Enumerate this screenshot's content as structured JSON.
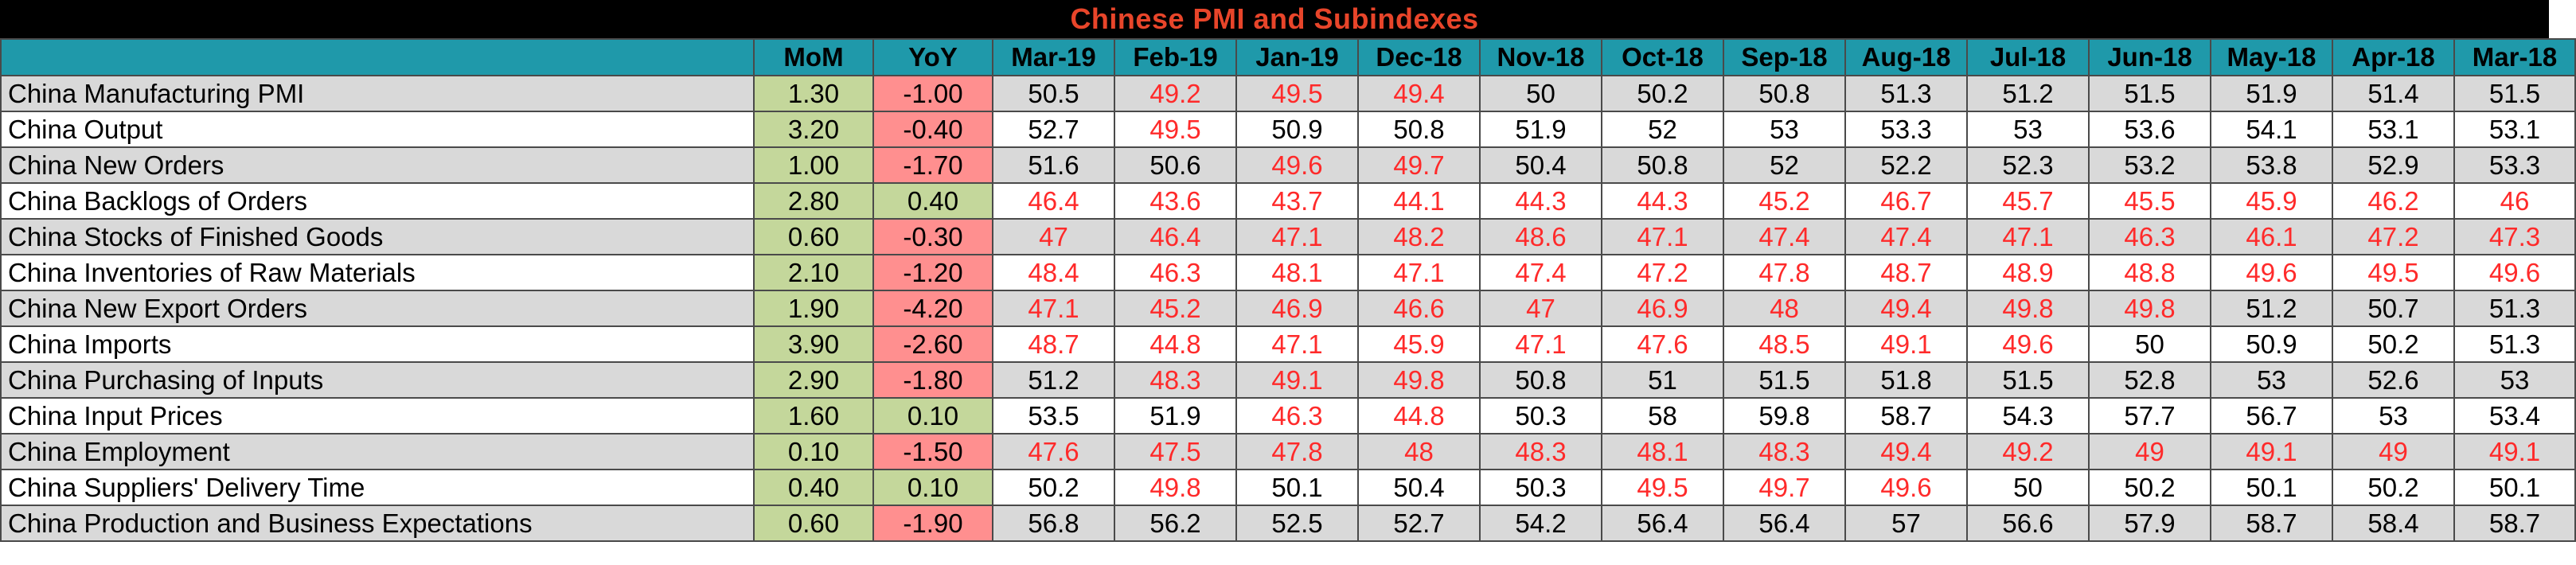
{
  "title": "Chinese PMI and Subindexes",
  "colors": {
    "title_text": "#e8452a",
    "header_bg": "#1f99aa",
    "positive_change_bg": "#c4d79b",
    "negative_change_bg": "#ff8f8f",
    "below_50_text": "#ff2a2a"
  },
  "columns": [
    "",
    "MoM",
    "YoY",
    "Mar-19",
    "Feb-19",
    "Jan-19",
    "Dec-18",
    "Nov-18",
    "Oct-18",
    "Sep-18",
    "Aug-18",
    "Jul-18",
    "Jun-18",
    "May-18",
    "Apr-18",
    "Mar-18"
  ],
  "rows": [
    {
      "label": "China Manufacturing PMI",
      "mom": "1.30",
      "yoy": "-1.00",
      "values": [
        "50.5",
        "49.2",
        "49.5",
        "49.4",
        "50",
        "50.2",
        "50.8",
        "51.3",
        "51.2",
        "51.5",
        "51.9",
        "51.4",
        "51.5"
      ]
    },
    {
      "label": "China Output",
      "mom": "3.20",
      "yoy": "-0.40",
      "values": [
        "52.7",
        "49.5",
        "50.9",
        "50.8",
        "51.9",
        "52",
        "53",
        "53.3",
        "53",
        "53.6",
        "54.1",
        "53.1",
        "53.1"
      ]
    },
    {
      "label": "China New Orders",
      "mom": "1.00",
      "yoy": "-1.70",
      "values": [
        "51.6",
        "50.6",
        "49.6",
        "49.7",
        "50.4",
        "50.8",
        "52",
        "52.2",
        "52.3",
        "53.2",
        "53.8",
        "52.9",
        "53.3"
      ]
    },
    {
      "label": "China Backlogs of Orders",
      "mom": "2.80",
      "yoy": "0.40",
      "values": [
        "46.4",
        "43.6",
        "43.7",
        "44.1",
        "44.3",
        "44.3",
        "45.2",
        "46.7",
        "45.7",
        "45.5",
        "45.9",
        "46.2",
        "46"
      ]
    },
    {
      "label": "China Stocks of Finished Goods",
      "mom": "0.60",
      "yoy": "-0.30",
      "values": [
        "47",
        "46.4",
        "47.1",
        "48.2",
        "48.6",
        "47.1",
        "47.4",
        "47.4",
        "47.1",
        "46.3",
        "46.1",
        "47.2",
        "47.3"
      ]
    },
    {
      "label": "China Inventories of Raw Materials",
      "mom": "2.10",
      "yoy": "-1.20",
      "values": [
        "48.4",
        "46.3",
        "48.1",
        "47.1",
        "47.4",
        "47.2",
        "47.8",
        "48.7",
        "48.9",
        "48.8",
        "49.6",
        "49.5",
        "49.6"
      ]
    },
    {
      "label": "China New Export Orders",
      "mom": "1.90",
      "yoy": "-4.20",
      "values": [
        "47.1",
        "45.2",
        "46.9",
        "46.6",
        "47",
        "46.9",
        "48",
        "49.4",
        "49.8",
        "49.8",
        "51.2",
        "50.7",
        "51.3"
      ]
    },
    {
      "label": "China Imports",
      "mom": "3.90",
      "yoy": "-2.60",
      "values": [
        "48.7",
        "44.8",
        "47.1",
        "45.9",
        "47.1",
        "47.6",
        "48.5",
        "49.1",
        "49.6",
        "50",
        "50.9",
        "50.2",
        "51.3"
      ]
    },
    {
      "label": "China Purchasing of Inputs",
      "mom": "2.90",
      "yoy": "-1.80",
      "values": [
        "51.2",
        "48.3",
        "49.1",
        "49.8",
        "50.8",
        "51",
        "51.5",
        "51.8",
        "51.5",
        "52.8",
        "53",
        "52.6",
        "53"
      ]
    },
    {
      "label": "China Input Prices",
      "mom": "1.60",
      "yoy": "0.10",
      "values": [
        "53.5",
        "51.9",
        "46.3",
        "44.8",
        "50.3",
        "58",
        "59.8",
        "58.7",
        "54.3",
        "57.7",
        "56.7",
        "53",
        "53.4"
      ]
    },
    {
      "label": "China Employment",
      "mom": "0.10",
      "yoy": "-1.50",
      "values": [
        "47.6",
        "47.5",
        "47.8",
        "48",
        "48.3",
        "48.1",
        "48.3",
        "49.4",
        "49.2",
        "49",
        "49.1",
        "49",
        "49.1"
      ]
    },
    {
      "label": "China Suppliers' Delivery Time",
      "mom": "0.40",
      "yoy": "0.10",
      "values": [
        "50.2",
        "49.8",
        "50.1",
        "50.4",
        "50.3",
        "49.5",
        "49.7",
        "49.6",
        "50",
        "50.2",
        "50.1",
        "50.2",
        "50.1"
      ]
    },
    {
      "label": "China Production and Business Expectations",
      "mom": "0.60",
      "yoy": "-1.90",
      "values": [
        "56.8",
        "56.2",
        "52.5",
        "52.7",
        "54.2",
        "56.4",
        "56.4",
        "57",
        "56.6",
        "57.9",
        "58.7",
        "58.4",
        "58.7"
      ]
    }
  ]
}
